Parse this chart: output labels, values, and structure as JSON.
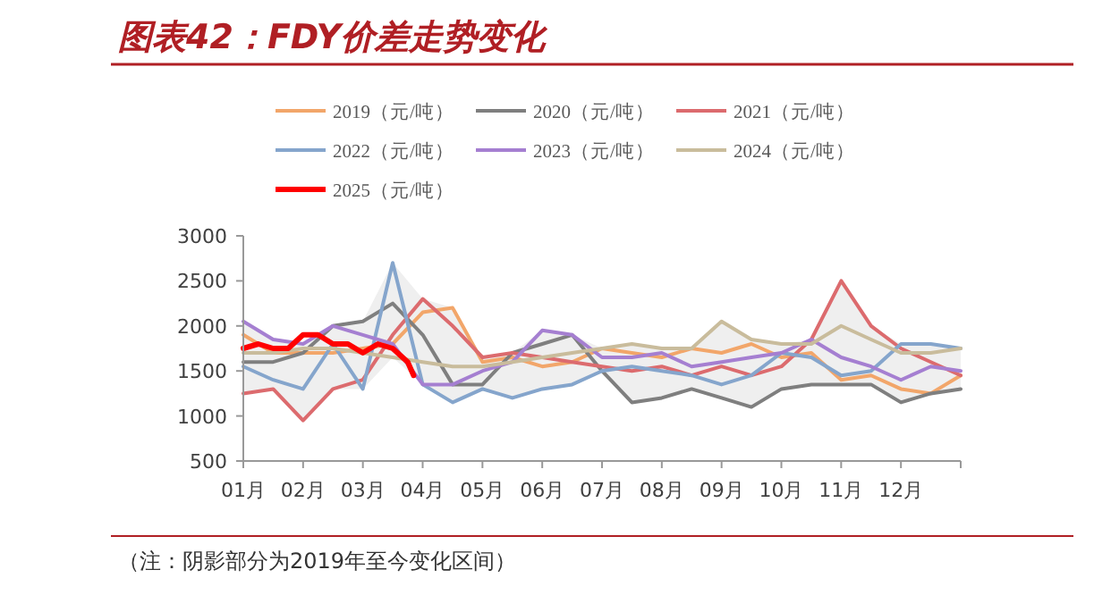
{
  "chart_data": {
    "type": "line",
    "title": "图表42：FDY价差走势变化",
    "annotations": [
      "（注：阴影部分为2019年至今变化区间）"
    ],
    "x": [
      1,
      1.5,
      2,
      2.5,
      3,
      3.5,
      4,
      4.5,
      5,
      5.5,
      6,
      6.5,
      7,
      7.5,
      8,
      8.5,
      9,
      9.5,
      10,
      10.5,
      11,
      11.5,
      12,
      12.5,
      13
    ],
    "xlim": [
      1,
      13
    ],
    "xticks": [
      {
        "value": 1,
        "label": "01月"
      },
      {
        "value": 2,
        "label": "02月"
      },
      {
        "value": 3,
        "label": "03月"
      },
      {
        "value": 4,
        "label": "04月"
      },
      {
        "value": 5,
        "label": "05月"
      },
      {
        "value": 6,
        "label": "06月"
      },
      {
        "value": 7,
        "label": "07月"
      },
      {
        "value": 8,
        "label": "08月"
      },
      {
        "value": 9,
        "label": "09月"
      },
      {
        "value": 10,
        "label": "10月"
      },
      {
        "value": 11,
        "label": "11月"
      },
      {
        "value": 12,
        "label": "12月"
      },
      {
        "value": 13,
        "label": null
      }
    ],
    "ylim": [
      500,
      3000
    ],
    "yticks": [
      500,
      1000,
      1500,
      2000,
      2500,
      3000
    ],
    "grid": false,
    "legend": "top",
    "marker": "none",
    "line_style": "solid",
    "series": [
      {
        "type": "area",
        "color": "#efefef",
        "values": [
          2050,
          1850,
          1800,
          2000,
          2050,
          2700,
          2300,
          2200,
          1650,
          1700,
          1950,
          1900,
          1750,
          1800,
          1750,
          1750,
          2050,
          1850,
          1800,
          1850,
          2500,
          2000,
          1800,
          1800,
          1750
        ]
      },
      {
        "type": "area",
        "color": "#ffffff",
        "values": [
          1250,
          1300,
          950,
          1300,
          1300,
          1650,
          1350,
          1150,
          1300,
          1200,
          1300,
          1350,
          1500,
          1150,
          1200,
          1300,
          1200,
          1100,
          1300,
          1350,
          1350,
          1350,
          1150,
          1250,
          1300
        ]
      },
      {
        "name": "2019（元/吨）",
        "color": "#f2a66a",
        "values": [
          1900,
          1700,
          1700,
          1700,
          1750,
          1800,
          2150,
          2200,
          1600,
          1650,
          1550,
          1600,
          1750,
          1700,
          1650,
          1750,
          1700,
          1800,
          1650,
          1700,
          1400,
          1450,
          1300,
          1250,
          1450
        ]
      },
      {
        "name": "2020（元/吨）",
        "color": "#7f7f7f",
        "values": [
          1600,
          1600,
          1700,
          2000,
          2050,
          2250,
          1900,
          1350,
          1350,
          1700,
          1800,
          1900,
          1500,
          1150,
          1200,
          1300,
          1200,
          1100,
          1300,
          1350,
          1350,
          1350,
          1150,
          1250,
          1300
        ]
      },
      {
        "name": "2021（元/吨）",
        "color": "#dc6b6e",
        "values": [
          1250,
          1300,
          950,
          1300,
          1400,
          1900,
          2300,
          2000,
          1650,
          1700,
          1650,
          1600,
          1550,
          1500,
          1550,
          1450,
          1550,
          1450,
          1550,
          1850,
          2500,
          2000,
          1750,
          1600,
          1450
        ]
      },
      {
        "name": "2022（元/吨）",
        "color": "#85a5cc",
        "values": [
          1550,
          1400,
          1300,
          1800,
          1300,
          2700,
          1350,
          1150,
          1300,
          1200,
          1300,
          1350,
          1500,
          1550,
          1500,
          1450,
          1350,
          1450,
          1700,
          1650,
          1450,
          1500,
          1800,
          1800,
          1750
        ]
      },
      {
        "name": "2023（元/吨）",
        "color": "#a57fd1",
        "values": [
          2050,
          1850,
          1800,
          2000,
          1900,
          1800,
          1350,
          1350,
          1500,
          1600,
          1950,
          1900,
          1650,
          1650,
          1700,
          1550,
          1600,
          1650,
          1700,
          1850,
          1650,
          1550,
          1400,
          1550,
          1500
        ]
      },
      {
        "name": "2024（元/吨）",
        "color": "#c9bc9c",
        "values": [
          1700,
          1700,
          1750,
          1750,
          1700,
          1650,
          1600,
          1550,
          1550,
          1600,
          1650,
          1700,
          1750,
          1800,
          1750,
          1750,
          2050,
          1850,
          1800,
          1800,
          2000,
          1850,
          1700,
          1700,
          1750
        ]
      },
      {
        "name": "2025（元/吨）",
        "color": "#ff0000",
        "x": [
          1,
          1.25,
          1.5,
          1.75,
          2,
          2.25,
          2.5,
          2.75,
          3,
          3.25,
          3.5,
          3.75,
          3.85
        ],
        "values": [
          1750,
          1800,
          1750,
          1750,
          1900,
          1900,
          1800,
          1800,
          1700,
          1800,
          1750,
          1600,
          1450
        ]
      }
    ]
  }
}
